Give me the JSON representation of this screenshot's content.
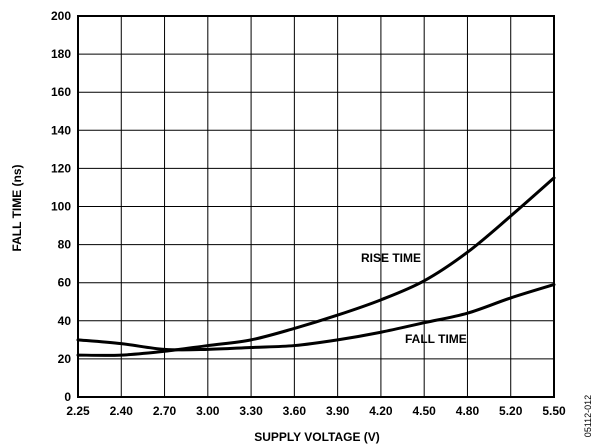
{
  "chart_data": {
    "type": "line",
    "title": "",
    "xlabel": "SUPPLY VOLTAGE (V)",
    "ylabel": "FALL TIME (ns)",
    "x_tick_labels": [
      "2.25",
      "2.40",
      "2.70",
      "3.00",
      "3.30",
      "3.60",
      "3.90",
      "4.20",
      "4.50",
      "4.80",
      "5.20",
      "5.50"
    ],
    "y_ticks": [
      0,
      20,
      40,
      60,
      80,
      100,
      120,
      140,
      160,
      180,
      200
    ],
    "ylim": [
      0,
      200
    ],
    "grid": true,
    "series": [
      {
        "name": "RISE TIME",
        "values": [
          22,
          22,
          24,
          27,
          30,
          36,
          43,
          51,
          61,
          76,
          95,
          115
        ]
      },
      {
        "name": "FALL TIME",
        "values": [
          30,
          28,
          25,
          25,
          26,
          27,
          30,
          34,
          39,
          44,
          52,
          59
        ]
      }
    ],
    "annotations": [
      "RISE TIME",
      "FALL TIME"
    ],
    "figure_id": "05112-012"
  }
}
